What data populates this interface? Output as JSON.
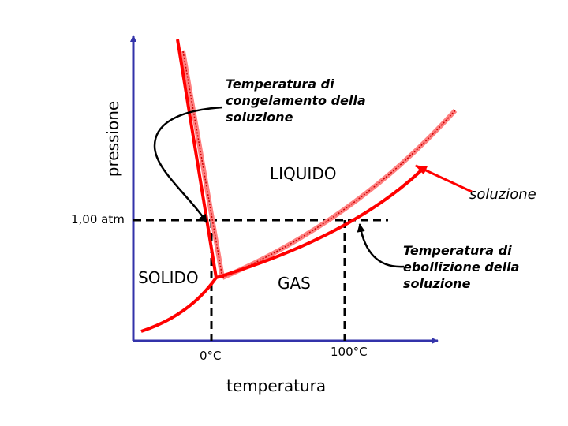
{
  "axes": {
    "y_label": "pressione",
    "x_label": "temperatura"
  },
  "ticks": {
    "pressure": "1,00 atm",
    "freeze_temp": "0°C",
    "boil_temp": "100°C"
  },
  "regions": {
    "solid": "SOLIDO",
    "liquid": "LIQUIDO",
    "gas": "GAS"
  },
  "annotations": {
    "freezing": "Temperatura di congelamento della soluzione",
    "boiling": "Temperatura di ebollizione della soluzione",
    "solution": "soluzione"
  },
  "colors": {
    "solution_curve": "#ff0000",
    "pure_curve": "#ff8080",
    "axes": "#3333aa",
    "guides": "#000000"
  }
}
